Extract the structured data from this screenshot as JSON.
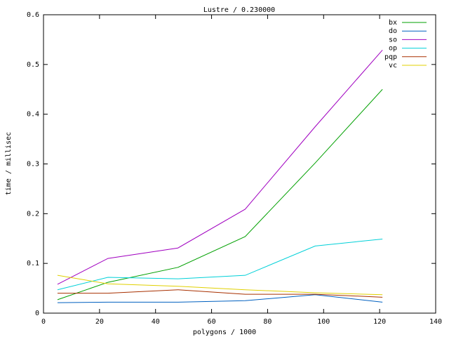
{
  "chart_data": {
    "type": "line",
    "title": "Lustre / 0.230000",
    "x_label": "polygons / 1000",
    "y_label": "time / millisec",
    "x": [
      5,
      23,
      48,
      72,
      97,
      121
    ],
    "series": [
      {
        "name": "bx",
        "color": "#00a000",
        "values": [
          0.027,
          0.062,
          0.092,
          0.154,
          0.302,
          0.45
        ]
      },
      {
        "name": "do",
        "color": "#0060c0",
        "values": [
          0.021,
          0.022,
          0.022,
          0.025,
          0.037,
          0.022
        ]
      },
      {
        "name": "so",
        "color": "#a000c0",
        "values": [
          0.058,
          0.11,
          0.131,
          0.209,
          0.375,
          0.529
        ]
      },
      {
        "name": "op",
        "color": "#00d0d8",
        "values": [
          0.047,
          0.072,
          0.069,
          0.076,
          0.135,
          0.149
        ]
      },
      {
        "name": "pqp",
        "color": "#a83000",
        "values": [
          0.04,
          0.04,
          0.047,
          0.038,
          0.038,
          0.032
        ]
      },
      {
        "name": "vc",
        "color": "#e0d000",
        "values": [
          0.076,
          0.059,
          0.054,
          0.047,
          0.041,
          0.037
        ]
      }
    ],
    "xlim": [
      0,
      140
    ],
    "xticks": [
      0,
      20,
      40,
      60,
      80,
      100,
      120,
      140
    ],
    "ylim": [
      0,
      0.6
    ],
    "yticks": [
      0,
      0.1,
      0.2,
      0.3,
      0.4,
      0.5,
      0.6
    ],
    "legend": "top-right"
  }
}
